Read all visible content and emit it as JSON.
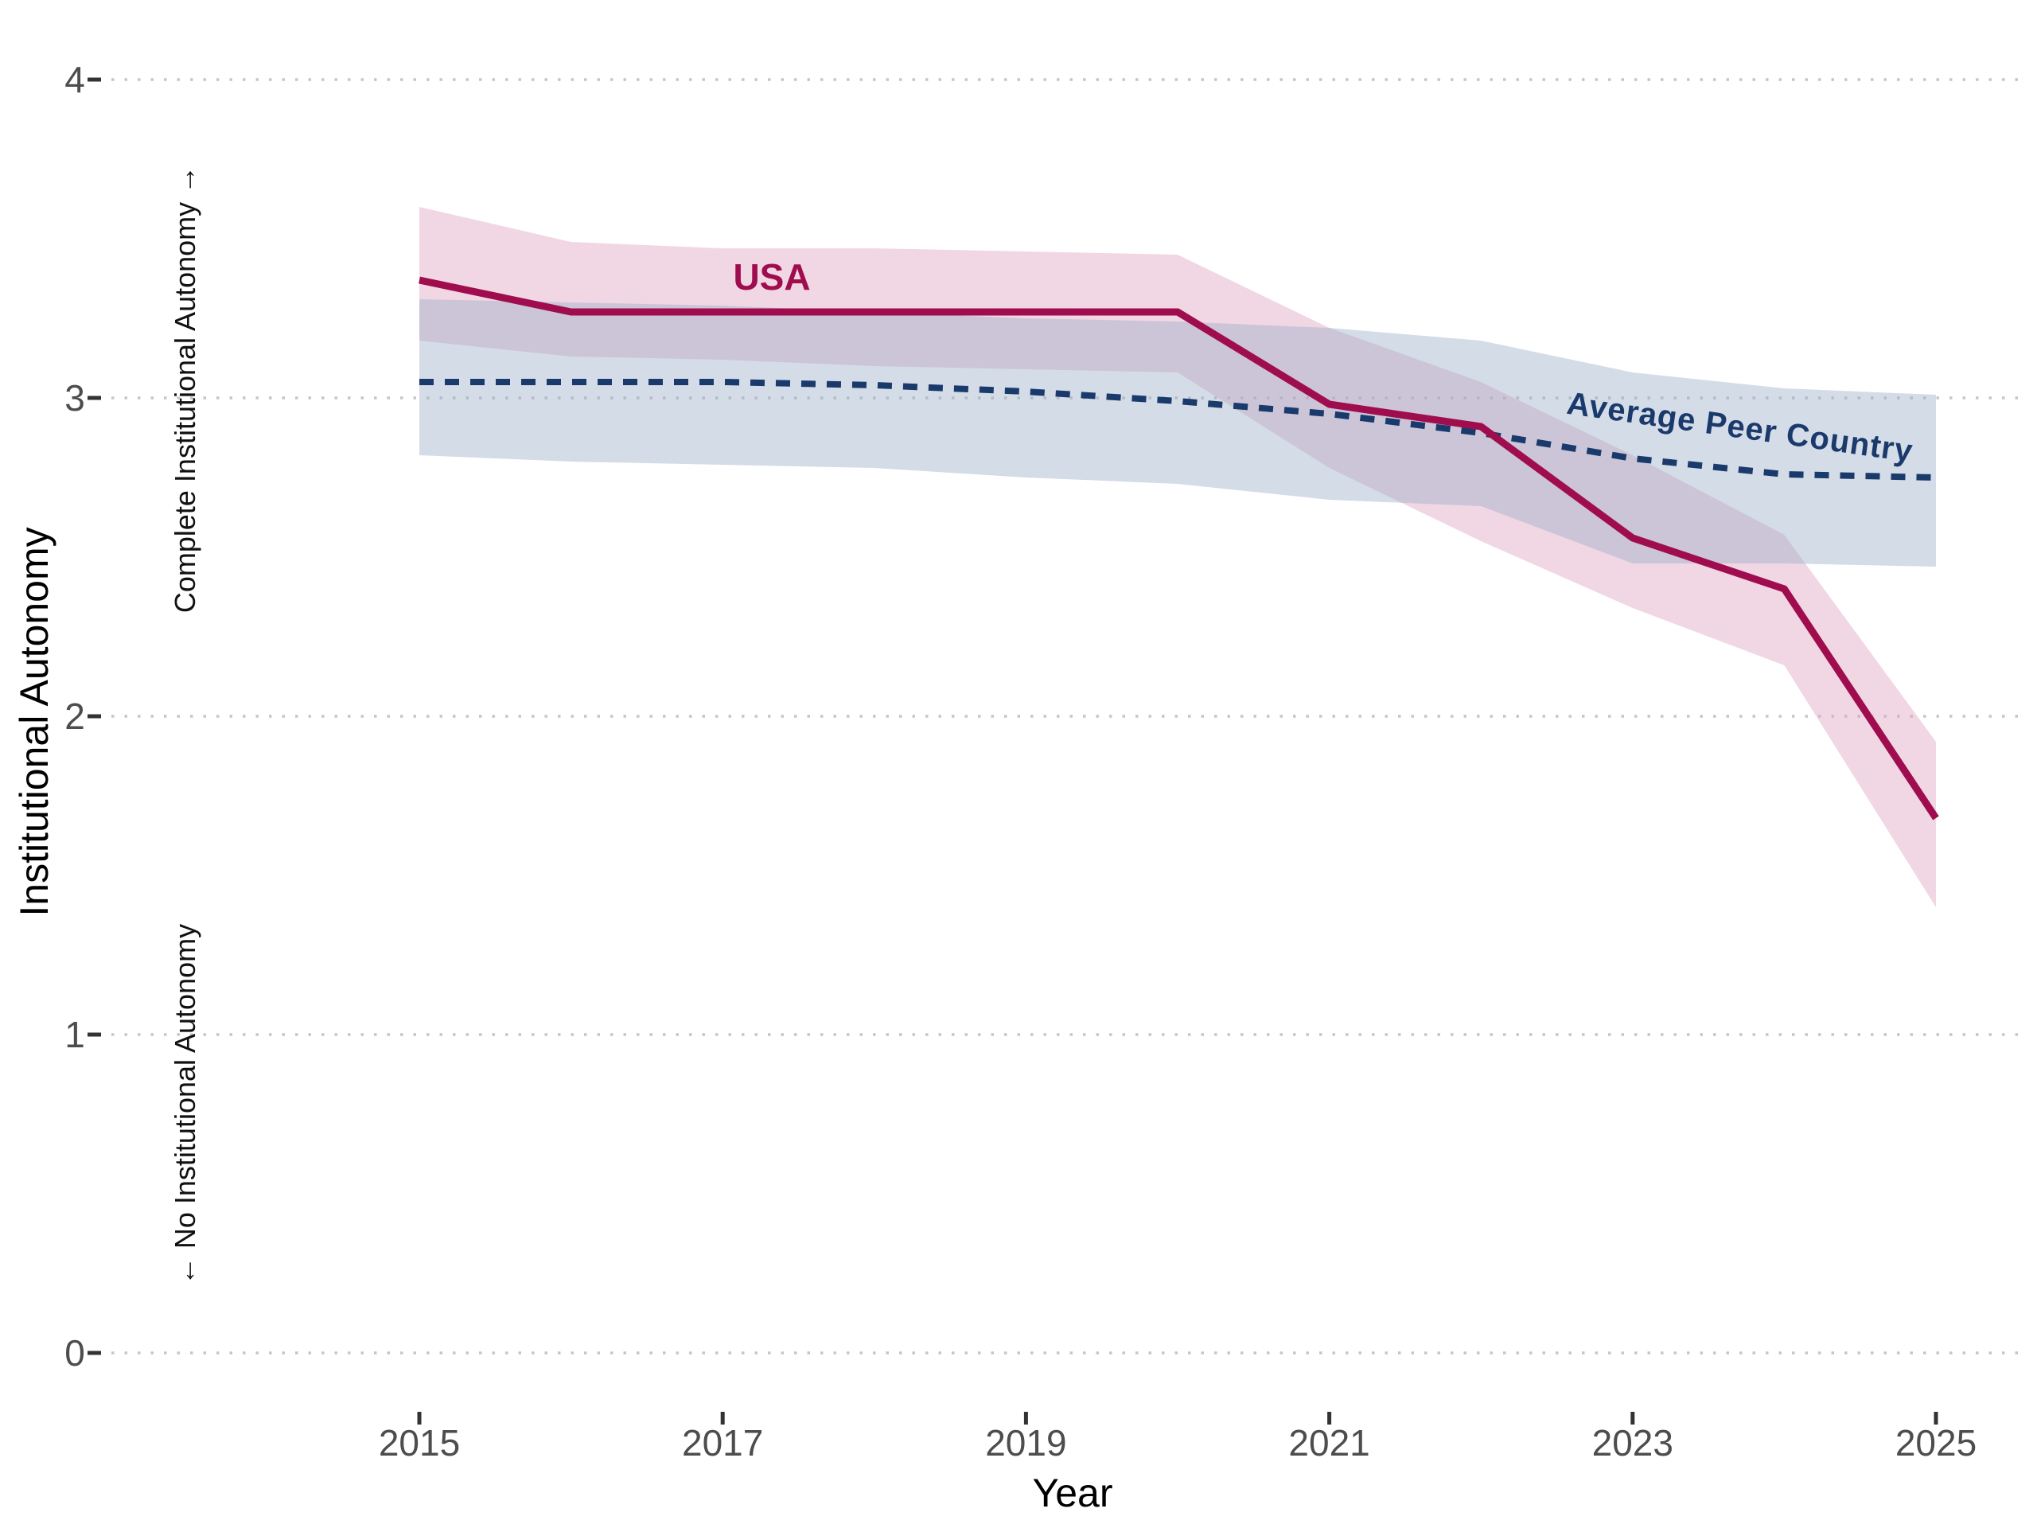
{
  "chart_data": {
    "type": "line",
    "title": "",
    "xlabel": "Year",
    "ylabel": "Institutional Autonomy",
    "x": [
      2015,
      2016,
      2017,
      2018,
      2019,
      2020,
      2021,
      2022,
      2023,
      2024,
      2025
    ],
    "x_ticks": [
      2015,
      2017,
      2019,
      2021,
      2023,
      2025
    ],
    "y_ticks": [
      0,
      1,
      2,
      3,
      4
    ],
    "ylim": [
      0,
      4
    ],
    "xlim": [
      2013,
      2025.6
    ],
    "grid": "horizontal-dotted",
    "legend": "inline-labels-on-chart",
    "band_opacity": 0.42,
    "series": [
      {
        "name": "USA",
        "label": "USA",
        "color": "#a00d4e",
        "line_style": "solid",
        "values": [
          3.37,
          3.27,
          3.27,
          3.27,
          3.27,
          3.27,
          2.98,
          2.91,
          2.56,
          2.4,
          1.68
        ],
        "band_upper": [
          3.6,
          3.49,
          3.47,
          3.47,
          3.46,
          3.45,
          3.22,
          3.05,
          2.82,
          2.57,
          1.92
        ],
        "band_lower": [
          3.18,
          3.13,
          3.12,
          3.1,
          3.09,
          3.08,
          2.78,
          2.55,
          2.34,
          2.16,
          1.4
        ],
        "band_color": "#dea0be"
      },
      {
        "name": "Average Peer Country",
        "label": "Average Peer Country",
        "color": "#1b3a6c",
        "line_style": "dashed",
        "values": [
          3.05,
          3.05,
          3.05,
          3.04,
          3.02,
          2.99,
          2.95,
          2.89,
          2.81,
          2.76,
          2.75
        ],
        "band_upper": [
          3.31,
          3.3,
          3.29,
          3.27,
          3.25,
          3.24,
          3.22,
          3.18,
          3.08,
          3.03,
          3.01
        ],
        "band_lower": [
          2.82,
          2.8,
          2.79,
          2.78,
          2.75,
          2.73,
          2.68,
          2.66,
          2.48,
          2.48,
          2.47
        ],
        "band_color": "#98acc8"
      }
    ],
    "annotations": {
      "upper_axis_note": "Complete Institutional Autonomy →",
      "lower_axis_note": "← No Institutional Autonomy"
    },
    "style": {
      "gridline_color": "#c6c6c6",
      "tick_color": "#333333",
      "tick_label_color": "#4d4d4d",
      "title_color": "#000000",
      "background": "#ffffff"
    }
  }
}
